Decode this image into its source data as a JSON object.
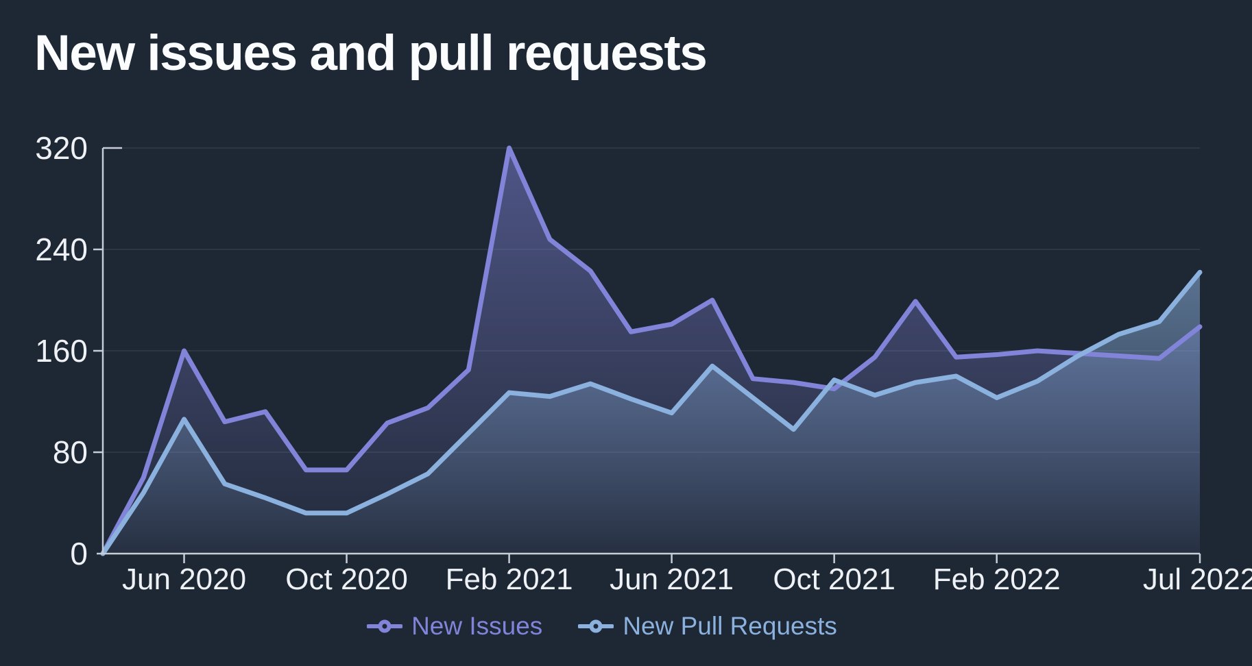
{
  "title": "New issues and pull requests",
  "colors": {
    "background": "#1e2734",
    "axis_line": "#c7cdd8",
    "tick_label": "#eef1f6",
    "gridline": "rgba(255,255,255,0.07)",
    "title_text": "#fbfcfe",
    "new_issues": "#8184d9",
    "new_pull_requests": "#8bb1de"
  },
  "chart_data": {
    "type": "area",
    "title": "New issues and pull requests",
    "xlabel": "",
    "ylabel": "",
    "ylim": [
      0,
      320
    ],
    "y_ticks": [
      0,
      80,
      160,
      240,
      320
    ],
    "grid": "horizontal gridlines at y ticks",
    "legend_position": "bottom",
    "categories": [
      "Apr 2020",
      "May 2020",
      "Jun 2020",
      "Jul 2020",
      "Aug 2020",
      "Sep 2020",
      "Oct 2020",
      "Nov 2020",
      "Dec 2020",
      "Jan 2021",
      "Feb 2021",
      "Mar 2021",
      "Apr 2021",
      "May 2021",
      "Jun 2021",
      "Jul 2021",
      "Aug 2021",
      "Sep 2021",
      "Oct 2021",
      "Nov 2021",
      "Dec 2021",
      "Jan 2022",
      "Feb 2022",
      "Mar 2022",
      "Apr 2022",
      "May 2022",
      "Jun 2022",
      "Jul 2022"
    ],
    "x_tick_indices": [
      2,
      6,
      10,
      14,
      18,
      22,
      27
    ],
    "x_tick_labels": [
      "Jun 2020",
      "Oct 2020",
      "Feb 2021",
      "Jun 2021",
      "Oct 2021",
      "Feb 2022",
      "Jul 2022"
    ],
    "series": [
      {
        "name": "New Issues",
        "color": "#8184d9",
        "values": [
          0,
          60,
          160,
          104,
          112,
          66,
          66,
          103,
          115,
          145,
          320,
          248,
          223,
          175,
          181,
          200,
          138,
          135,
          130,
          155,
          199,
          155,
          157,
          160,
          158,
          156,
          154,
          179
        ]
      },
      {
        "name": "New Pull Requests",
        "color": "#8bb1de",
        "values": [
          0,
          48,
          106,
          55,
          44,
          32,
          32,
          47,
          63,
          95,
          127,
          124,
          134,
          122,
          111,
          148,
          123,
          98,
          137,
          125,
          135,
          140,
          123,
          136,
          156,
          173,
          183,
          222
        ]
      }
    ]
  },
  "legend": {
    "items": [
      {
        "label": "New Issues"
      },
      {
        "label": "New Pull Requests"
      }
    ]
  }
}
